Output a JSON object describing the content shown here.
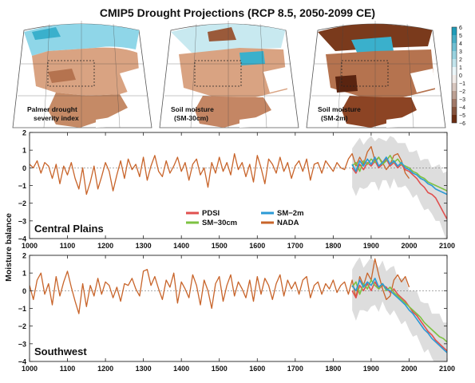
{
  "title": "CMIP5 Drought Projections (RCP 8.5, 2050-2099 CE)",
  "maps": {
    "panels": [
      {
        "label_line1": "Palmer drought",
        "label_line2": "severity index"
      },
      {
        "label_line1": "Soil moisture",
        "label_line2": "(SM-30cm)"
      },
      {
        "label_line1": "Soil moisture",
        "label_line2": "(SM-2m)"
      }
    ],
    "colorbar": {
      "ticks": [
        6,
        5,
        4,
        3,
        2,
        1,
        0,
        -1,
        -2,
        -3,
        -4,
        -5,
        -6
      ],
      "colors": {
        "wet": "#1f9bb8",
        "dry": "#6b2d12",
        "neutral": "#ffffff"
      }
    }
  },
  "chart_data": [
    {
      "type": "line",
      "panel_label": "Central Plains",
      "ylabel": "Moisture balance",
      "xlim": [
        1000,
        2100
      ],
      "ylim": [
        -4,
        2
      ],
      "xticks": [
        1000,
        1100,
        1200,
        1300,
        1400,
        1500,
        1600,
        1700,
        1800,
        1900,
        2000,
        2100
      ],
      "yticks": [
        2,
        1,
        0,
        -1,
        -2,
        -3,
        -4
      ],
      "legend": {
        "placement": "lower-center",
        "entries": [
          "PDSI",
          "SM−30cm",
          "SM−2m",
          "NADA"
        ]
      },
      "series": [
        {
          "name": "NADA",
          "color": "#c8642a",
          "x": [
            1000,
            1010,
            1020,
            1030,
            1040,
            1050,
            1060,
            1070,
            1080,
            1090,
            1100,
            1110,
            1120,
            1130,
            1140,
            1150,
            1160,
            1170,
            1180,
            1190,
            1200,
            1210,
            1220,
            1230,
            1240,
            1250,
            1260,
            1270,
            1280,
            1290,
            1300,
            1310,
            1320,
            1330,
            1340,
            1350,
            1360,
            1370,
            1380,
            1390,
            1400,
            1410,
            1420,
            1430,
            1440,
            1450,
            1460,
            1470,
            1480,
            1490,
            1500,
            1510,
            1520,
            1530,
            1540,
            1550,
            1560,
            1570,
            1580,
            1590,
            1600,
            1610,
            1620,
            1630,
            1640,
            1650,
            1660,
            1670,
            1680,
            1690,
            1700,
            1710,
            1720,
            1730,
            1740,
            1750,
            1760,
            1770,
            1780,
            1790,
            1800,
            1810,
            1820,
            1830,
            1840,
            1850,
            1860,
            1870,
            1880,
            1890,
            1900,
            1910,
            1920,
            1930,
            1940,
            1950,
            1960,
            1970,
            1980,
            1990,
            2000
          ],
          "y": [
            0.2,
            0.0,
            0.4,
            -0.3,
            0.3,
            0.1,
            -0.6,
            0.2,
            -0.9,
            0.1,
            -0.4,
            0.3,
            -0.6,
            -1.2,
            0.0,
            -1.5,
            -0.8,
            0.1,
            -1.2,
            -0.5,
            0.3,
            -0.2,
            -1.3,
            -0.4,
            0.4,
            -0.6,
            0.5,
            -0.1,
            0.2,
            -0.5,
            0.6,
            -0.7,
            0.1,
            0.7,
            -0.2,
            -0.5,
            0.4,
            -0.3,
            0.1,
            0.6,
            -0.2,
            0.3,
            -0.7,
            0.2,
            0.5,
            -0.4,
            0.0,
            -1.1,
            0.3,
            -0.3,
            0.6,
            -0.2,
            0.3,
            -0.4,
            0.8,
            -0.1,
            0.3,
            -0.5,
            0.2,
            -0.8,
            0.7,
            0.0,
            -0.9,
            0.5,
            0.2,
            -0.3,
            0.6,
            -0.2,
            0.3,
            -0.6,
            0.1,
            0.4,
            -0.2,
            0.5,
            -0.7,
            0.2,
            0.3,
            -0.3,
            0.4,
            0.1,
            -0.2,
            0.3,
            0.0,
            -0.1,
            0.5,
            0.8,
            0.1,
            0.6,
            0.2,
            0.9,
            1.2,
            0.4,
            0.6,
            0.3,
            -0.1,
            0.2,
            0.7,
            0.8,
            0.4,
            -0.3,
            -0.6
          ]
        },
        {
          "name": "PDSI",
          "color": "#e0504f",
          "x": [
            1850,
            1860,
            1870,
            1880,
            1890,
            1900,
            1910,
            1920,
            1930,
            1940,
            1950,
            1960,
            1970,
            1980,
            1990,
            2000,
            2010,
            2020,
            2030,
            2040,
            2050,
            2060,
            2070,
            2080,
            2090,
            2100
          ],
          "y": [
            0.0,
            -0.3,
            0.2,
            -0.1,
            0.3,
            0.1,
            0.4,
            0.0,
            0.2,
            0.5,
            0.1,
            0.3,
            0.0,
            0.2,
            -0.1,
            -0.2,
            -0.4,
            -0.6,
            -0.9,
            -1.1,
            -1.4,
            -1.5,
            -1.7,
            -2.1,
            -2.5,
            -2.9
          ]
        },
        {
          "name": "SM−30cm",
          "color": "#7dc242",
          "x": [
            1850,
            1860,
            1870,
            1880,
            1890,
            1900,
            1910,
            1920,
            1930,
            1940,
            1950,
            1960,
            1970,
            1980,
            1990,
            2000,
            2010,
            2020,
            2030,
            2040,
            2050,
            2060,
            2070,
            2080,
            2090,
            2100
          ],
          "y": [
            0.1,
            0.3,
            -0.2,
            0.4,
            0.2,
            0.5,
            0.3,
            0.6,
            0.2,
            0.4,
            0.7,
            0.3,
            0.5,
            0.2,
            0.1,
            0.0,
            -0.2,
            -0.3,
            -0.5,
            -0.6,
            -0.8,
            -0.9,
            -1.0,
            -1.1,
            -1.2,
            -1.3
          ]
        },
        {
          "name": "SM−2m",
          "color": "#2b9ad6",
          "x": [
            1850,
            1860,
            1870,
            1880,
            1890,
            1900,
            1910,
            1920,
            1930,
            1940,
            1950,
            1960,
            1970,
            1980,
            1990,
            2000,
            2010,
            2020,
            2030,
            2040,
            2050,
            2060,
            2070,
            2080,
            2090,
            2100
          ],
          "y": [
            0.2,
            -0.2,
            0.4,
            0.1,
            0.5,
            0.2,
            0.6,
            0.1,
            0.3,
            0.6,
            0.2,
            0.4,
            0.1,
            0.3,
            0.0,
            -0.1,
            -0.3,
            -0.4,
            -0.6,
            -0.7,
            -0.9,
            -1.0,
            -1.2,
            -1.3,
            -1.4,
            -1.5
          ]
        }
      ]
    },
    {
      "type": "line",
      "panel_label": "Southwest",
      "ylabel": "Moisture balance",
      "xlim": [
        1000,
        2100
      ],
      "ylim": [
        -4,
        2
      ],
      "xticks": [
        1000,
        1100,
        1200,
        1300,
        1400,
        1500,
        1600,
        1700,
        1800,
        1900,
        2000,
        2100
      ],
      "yticks": [
        2,
        1,
        0,
        -1,
        -2,
        -3,
        -4
      ],
      "series": [
        {
          "name": "NADA",
          "color": "#c8642a",
          "x": [
            1000,
            1010,
            1020,
            1030,
            1040,
            1050,
            1060,
            1070,
            1080,
            1090,
            1100,
            1110,
            1120,
            1130,
            1140,
            1150,
            1160,
            1170,
            1180,
            1190,
            1200,
            1210,
            1220,
            1230,
            1240,
            1250,
            1260,
            1270,
            1280,
            1290,
            1300,
            1310,
            1320,
            1330,
            1340,
            1350,
            1360,
            1370,
            1380,
            1390,
            1400,
            1410,
            1420,
            1430,
            1440,
            1450,
            1460,
            1470,
            1480,
            1490,
            1500,
            1510,
            1520,
            1530,
            1540,
            1550,
            1560,
            1570,
            1580,
            1590,
            1600,
            1610,
            1620,
            1630,
            1640,
            1650,
            1660,
            1670,
            1680,
            1690,
            1700,
            1710,
            1720,
            1730,
            1740,
            1750,
            1760,
            1770,
            1780,
            1790,
            1800,
            1810,
            1820,
            1830,
            1840,
            1850,
            1860,
            1870,
            1880,
            1890,
            1900,
            1910,
            1920,
            1930,
            1940,
            1950,
            1960,
            1970,
            1980,
            1990,
            2000
          ],
          "y": [
            0.3,
            -0.5,
            0.6,
            1.0,
            -0.2,
            0.4,
            -0.8,
            0.8,
            -0.3,
            0.5,
            1.1,
            0.2,
            -0.6,
            -1.3,
            0.4,
            -0.9,
            0.3,
            -0.3,
            0.7,
            -0.2,
            0.5,
            0.3,
            -0.4,
            0.2,
            -0.6,
            0.4,
            0.3,
            0.7,
            0.1,
            -0.3,
            1.1,
            1.2,
            0.3,
            0.8,
            0.1,
            -0.5,
            0.6,
            0.2,
            1.0,
            -0.7,
            0.5,
            0.1,
            -0.4,
            0.9,
            0.3,
            -0.8,
            0.6,
            0.0,
            -1.0,
            0.4,
            0.8,
            -0.6,
            0.3,
            0.9,
            -0.3,
            0.5,
            0.1,
            -0.4,
            0.6,
            -0.6,
            0.8,
            -0.2,
            0.7,
            0.3,
            -0.5,
            0.4,
            0.9,
            -0.3,
            0.6,
            0.1,
            0.5,
            -0.2,
            0.6,
            0.8,
            -0.4,
            0.3,
            0.5,
            -0.2,
            0.4,
            0.1,
            0.6,
            -0.1,
            0.3,
            0.5,
            -0.2,
            0.6,
            -0.4,
            0.8,
            0.3,
            1.0,
            0.6,
            1.8,
            0.9,
            0.1,
            -0.5,
            -0.3,
            0.6,
            0.9,
            0.5,
            0.8,
            0.2
          ]
        },
        {
          "name": "PDSI",
          "color": "#e0504f",
          "x": [
            1850,
            1860,
            1870,
            1880,
            1890,
            1900,
            1910,
            1920,
            1930,
            1940,
            1950,
            1960,
            1970,
            1980,
            1990,
            2000,
            2010,
            2020,
            2030,
            2040,
            2050,
            2060,
            2070,
            2080,
            2090,
            2100
          ],
          "y": [
            0.0,
            -0.4,
            0.3,
            0.0,
            0.4,
            0.0,
            0.5,
            0.1,
            0.3,
            0.2,
            -0.1,
            0.1,
            -0.2,
            -0.4,
            -0.6,
            -0.9,
            -1.2,
            -1.4,
            -1.7,
            -2.0,
            -2.3,
            -2.5,
            -2.8,
            -3.0,
            -3.2,
            -3.4
          ]
        },
        {
          "name": "SM−30cm",
          "color": "#7dc242",
          "x": [
            1850,
            1860,
            1870,
            1880,
            1890,
            1900,
            1910,
            1920,
            1930,
            1940,
            1950,
            1960,
            1970,
            1980,
            1990,
            2000,
            2010,
            2020,
            2030,
            2040,
            2050,
            2060,
            2070,
            2080,
            2090,
            2100
          ],
          "y": [
            0.2,
            0.5,
            -0.2,
            0.4,
            0.1,
            0.6,
            0.3,
            0.1,
            0.4,
            0.0,
            0.2,
            -0.1,
            -0.3,
            -0.5,
            -0.7,
            -0.9,
            -1.1,
            -1.3,
            -1.5,
            -1.8,
            -2.0,
            -2.2,
            -2.4,
            -2.6,
            -2.7,
            -2.9
          ]
        },
        {
          "name": "SM−2m",
          "color": "#2b9ad6",
          "x": [
            1850,
            1860,
            1870,
            1880,
            1890,
            1900,
            1910,
            1920,
            1930,
            1940,
            1950,
            1960,
            1970,
            1980,
            1990,
            2000,
            2010,
            2020,
            2030,
            2040,
            2050,
            2060,
            2070,
            2080,
            2090,
            2100
          ],
          "y": [
            0.3,
            0.0,
            0.6,
            0.2,
            0.5,
            0.3,
            0.7,
            0.2,
            0.4,
            0.1,
            0.0,
            -0.2,
            -0.4,
            -0.6,
            -0.8,
            -1.1,
            -1.3,
            -1.6,
            -1.9,
            -2.2,
            -2.4,
            -2.7,
            -2.9,
            -3.1,
            -3.3,
            -3.5
          ]
        }
      ]
    }
  ]
}
